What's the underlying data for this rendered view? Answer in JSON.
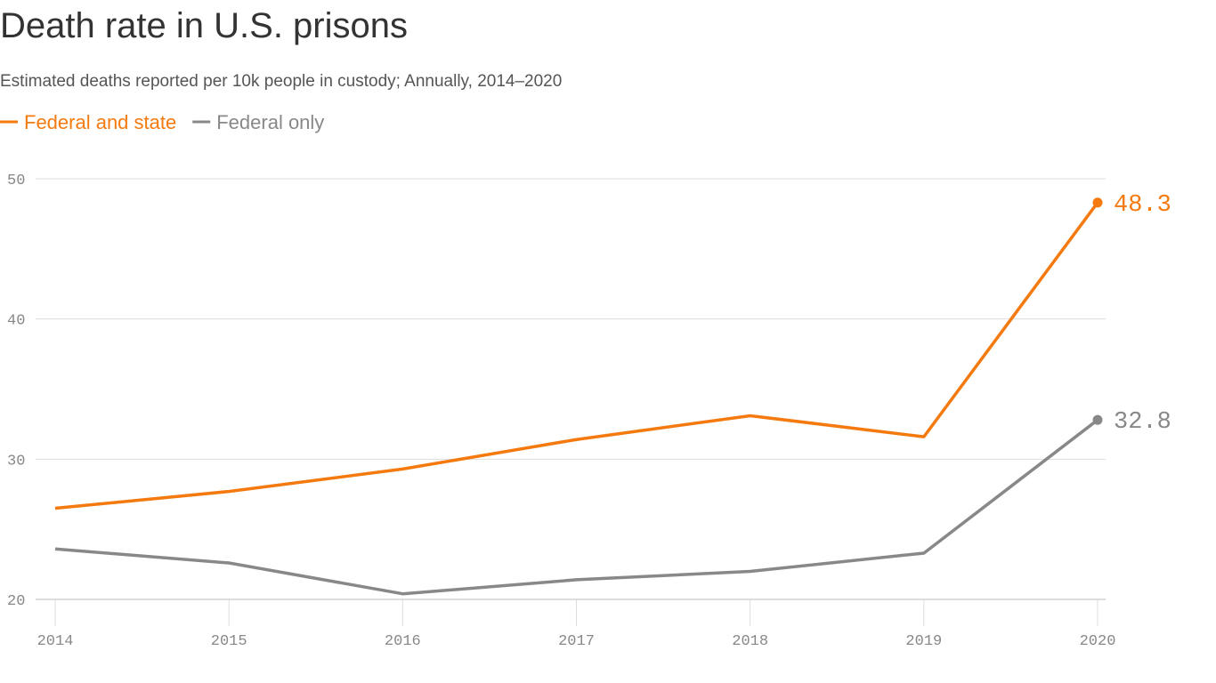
{
  "chart_data": {
    "type": "line",
    "title": "Death rate in U.S. prisons",
    "subtitle": "Estimated deaths reported per 10k people in custody; Annually, 2014–2020",
    "x": [
      2014,
      2015,
      2016,
      2017,
      2018,
      2019,
      2020
    ],
    "series": [
      {
        "name": "Federal and state",
        "color": "#f47a0f",
        "values": [
          26.5,
          27.7,
          29.3,
          31.4,
          33.1,
          31.6,
          48.3
        ]
      },
      {
        "name": "Federal only",
        "color": "#888888",
        "values": [
          23.6,
          22.6,
          20.4,
          21.4,
          22.0,
          23.3,
          32.8
        ]
      }
    ],
    "xlim": [
      2014,
      2020
    ],
    "xticks": [
      2014,
      2015,
      2016,
      2017,
      2018,
      2019,
      2020
    ],
    "ylim": [
      20,
      50
    ],
    "yticks": [
      20,
      30,
      40,
      50
    ],
    "grid": true
  }
}
